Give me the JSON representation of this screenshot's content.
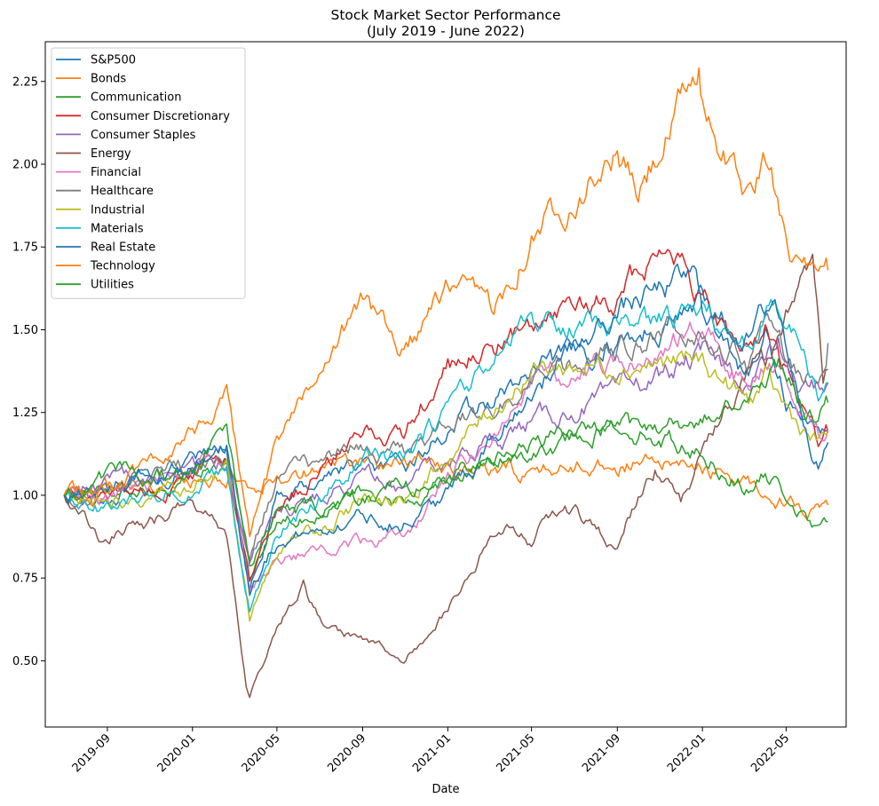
{
  "chart_data": {
    "type": "line",
    "title": [
      "Stock Market Sector Performance",
      "(July 2019 - June 2022)"
    ],
    "xlabel": "Date",
    "ylabel": "",
    "x_range": [
      "2019-07-01",
      "2022-06-30"
    ],
    "xlim": [
      "2019-06-04",
      "2022-07-26"
    ],
    "ylim": [
      0.3,
      2.37
    ],
    "grid": false,
    "legend_position": "top-left",
    "x_ticks": [
      {
        "date": "2019-09-01",
        "label": "2019-09"
      },
      {
        "date": "2020-01-01",
        "label": "2020-01"
      },
      {
        "date": "2020-05-01",
        "label": "2020-05"
      },
      {
        "date": "2020-09-01",
        "label": "2020-09"
      },
      {
        "date": "2021-01-01",
        "label": "2021-01"
      },
      {
        "date": "2021-05-01",
        "label": "2021-05"
      },
      {
        "date": "2021-09-01",
        "label": "2021-09"
      },
      {
        "date": "2022-01-01",
        "label": "2022-01"
      },
      {
        "date": "2022-05-01",
        "label": "2022-05"
      }
    ],
    "y_ticks": [
      {
        "value": 0.5,
        "label": "0.50"
      },
      {
        "value": 0.75,
        "label": "0.75"
      },
      {
        "value": 1.0,
        "label": "1.00"
      },
      {
        "value": 1.25,
        "label": "1.25"
      },
      {
        "value": 1.5,
        "label": "1.50"
      },
      {
        "value": 1.75,
        "label": "1.75"
      },
      {
        "value": 2.0,
        "label": "2.00"
      },
      {
        "value": 2.25,
        "label": "2.25"
      }
    ],
    "series": [
      {
        "name": "S&P500",
        "color": "#1f77b4",
        "points": [
          [
            "2019-07-01",
            1.0
          ],
          [
            "2019-09-01",
            1.0
          ],
          [
            "2019-12-01",
            1.06
          ],
          [
            "2020-02-19",
            1.14
          ],
          [
            "2020-03-23",
            0.7
          ],
          [
            "2020-05-01",
            0.98
          ],
          [
            "2020-08-01",
            1.09
          ],
          [
            "2020-10-30",
            1.07
          ],
          [
            "2021-01-01",
            1.2
          ],
          [
            "2021-05-01",
            1.36
          ],
          [
            "2021-09-01",
            1.46
          ],
          [
            "2022-01-01",
            1.58
          ],
          [
            "2022-03-08",
            1.36
          ],
          [
            "2022-04-01",
            1.48
          ],
          [
            "2022-05-01",
            1.3
          ],
          [
            "2022-06-16",
            1.17
          ],
          [
            "2022-06-30",
            1.2
          ]
        ]
      },
      {
        "name": "Bonds",
        "color": "#ff7f0e",
        "points": [
          [
            "2019-07-01",
            1.0
          ],
          [
            "2019-09-01",
            1.02
          ],
          [
            "2020-01-01",
            1.03
          ],
          [
            "2020-03-01",
            1.06
          ],
          [
            "2020-03-20",
            1.02
          ],
          [
            "2020-05-01",
            1.06
          ],
          [
            "2020-08-01",
            1.1
          ],
          [
            "2021-01-01",
            1.1
          ],
          [
            "2021-03-01",
            1.06
          ],
          [
            "2021-08-01",
            1.1
          ],
          [
            "2021-12-01",
            1.09
          ],
          [
            "2022-01-01",
            1.08
          ],
          [
            "2022-03-01",
            1.04
          ],
          [
            "2022-05-01",
            0.99
          ],
          [
            "2022-06-15",
            0.95
          ],
          [
            "2022-06-30",
            0.97
          ]
        ]
      },
      {
        "name": "Communication",
        "color": "#2ca02c",
        "points": [
          [
            "2019-07-01",
            1.0
          ],
          [
            "2019-09-01",
            0.99
          ],
          [
            "2020-01-01",
            1.06
          ],
          [
            "2020-02-19",
            1.1
          ],
          [
            "2020-03-23",
            0.75
          ],
          [
            "2020-05-01",
            0.93
          ],
          [
            "2020-09-01",
            1.0
          ],
          [
            "2020-10-30",
            0.97
          ],
          [
            "2021-01-01",
            1.06
          ],
          [
            "2021-05-01",
            1.15
          ],
          [
            "2021-09-01",
            1.22
          ],
          [
            "2022-01-01",
            1.13
          ],
          [
            "2022-03-08",
            1.02
          ],
          [
            "2022-04-01",
            1.06
          ],
          [
            "2022-05-01",
            1.0
          ],
          [
            "2022-06-16",
            0.88
          ],
          [
            "2022-06-30",
            0.92
          ]
        ]
      },
      {
        "name": "Consumer Discretionary",
        "color": "#d62728",
        "points": [
          [
            "2019-07-01",
            1.0
          ],
          [
            "2019-09-01",
            0.98
          ],
          [
            "2020-01-01",
            1.05
          ],
          [
            "2020-02-19",
            1.12
          ],
          [
            "2020-03-23",
            0.72
          ],
          [
            "2020-05-01",
            0.95
          ],
          [
            "2020-09-01",
            1.2
          ],
          [
            "2020-10-30",
            1.18
          ],
          [
            "2021-01-01",
            1.38
          ],
          [
            "2021-05-01",
            1.5
          ],
          [
            "2021-09-01",
            1.6
          ],
          [
            "2021-11-15",
            1.78
          ],
          [
            "2022-01-01",
            1.6
          ],
          [
            "2022-03-08",
            1.4
          ],
          [
            "2022-04-01",
            1.52
          ],
          [
            "2022-05-15",
            1.3
          ],
          [
            "2022-06-16",
            1.16
          ],
          [
            "2022-06-30",
            1.19
          ]
        ]
      },
      {
        "name": "Consumer Staples",
        "color": "#9467bd",
        "points": [
          [
            "2019-07-01",
            1.0
          ],
          [
            "2019-09-01",
            1.04
          ],
          [
            "2020-01-01",
            1.08
          ],
          [
            "2020-02-19",
            1.1
          ],
          [
            "2020-03-23",
            0.82
          ],
          [
            "2020-05-01",
            0.95
          ],
          [
            "2020-09-01",
            1.05
          ],
          [
            "2020-10-30",
            1.02
          ],
          [
            "2021-01-01",
            1.1
          ],
          [
            "2021-05-01",
            1.22
          ],
          [
            "2021-09-01",
            1.3
          ],
          [
            "2022-01-01",
            1.42
          ],
          [
            "2022-03-08",
            1.34
          ],
          [
            "2022-04-20",
            1.45
          ],
          [
            "2022-05-20",
            1.3
          ],
          [
            "2022-06-30",
            1.34
          ]
        ]
      },
      {
        "name": "Energy",
        "color": "#8c564b",
        "points": [
          [
            "2019-07-01",
            1.0
          ],
          [
            "2019-08-20",
            0.88
          ],
          [
            "2019-11-01",
            0.92
          ],
          [
            "2020-01-01",
            0.98
          ],
          [
            "2020-02-19",
            0.88
          ],
          [
            "2020-03-18",
            0.42
          ],
          [
            "2020-03-23",
            0.4
          ],
          [
            "2020-05-01",
            0.6
          ],
          [
            "2020-06-08",
            0.72
          ],
          [
            "2020-07-01",
            0.62
          ],
          [
            "2020-09-01",
            0.56
          ],
          [
            "2020-10-30",
            0.5
          ],
          [
            "2021-01-01",
            0.66
          ],
          [
            "2021-03-15",
            0.92
          ],
          [
            "2021-05-01",
            0.86
          ],
          [
            "2021-06-15",
            0.98
          ],
          [
            "2021-08-20",
            0.86
          ],
          [
            "2021-09-01",
            0.87
          ],
          [
            "2021-10-25",
            1.08
          ],
          [
            "2021-12-01",
            0.98
          ],
          [
            "2022-01-01",
            1.12
          ],
          [
            "2022-03-08",
            1.38
          ],
          [
            "2022-04-01",
            1.4
          ],
          [
            "2022-06-08",
            1.7
          ],
          [
            "2022-06-23",
            1.33
          ],
          [
            "2022-06-30",
            1.38
          ]
        ]
      },
      {
        "name": "Financial",
        "color": "#e377c2",
        "points": [
          [
            "2019-07-01",
            1.0
          ],
          [
            "2019-09-01",
            0.98
          ],
          [
            "2020-01-01",
            1.08
          ],
          [
            "2020-02-19",
            1.12
          ],
          [
            "2020-03-23",
            0.72
          ],
          [
            "2020-05-01",
            0.8
          ],
          [
            "2020-09-01",
            0.86
          ],
          [
            "2020-10-30",
            0.88
          ],
          [
            "2021-01-01",
            1.04
          ],
          [
            "2021-05-01",
            1.34
          ],
          [
            "2021-09-01",
            1.4
          ],
          [
            "2022-01-01",
            1.5
          ],
          [
            "2022-03-08",
            1.35
          ],
          [
            "2022-04-01",
            1.42
          ],
          [
            "2022-05-15",
            1.28
          ],
          [
            "2022-06-16",
            1.18
          ],
          [
            "2022-06-30",
            1.2
          ]
        ]
      },
      {
        "name": "Healthcare",
        "color": "#7f7f7f",
        "points": [
          [
            "2019-07-01",
            1.0
          ],
          [
            "2019-09-01",
            1.0
          ],
          [
            "2020-01-01",
            1.1
          ],
          [
            "2020-02-19",
            1.12
          ],
          [
            "2020-03-23",
            0.82
          ],
          [
            "2020-05-01",
            1.06
          ],
          [
            "2020-09-01",
            1.15
          ],
          [
            "2020-10-30",
            1.12
          ],
          [
            "2021-01-01",
            1.22
          ],
          [
            "2021-05-01",
            1.32
          ],
          [
            "2021-09-01",
            1.45
          ],
          [
            "2022-01-01",
            1.52
          ],
          [
            "2022-03-08",
            1.4
          ],
          [
            "2022-04-01",
            1.52
          ],
          [
            "2022-05-15",
            1.38
          ],
          [
            "2022-06-16",
            1.36
          ],
          [
            "2022-06-30",
            1.46
          ]
        ]
      },
      {
        "name": "Industrial",
        "color": "#bcbd22",
        "points": [
          [
            "2019-07-01",
            1.0
          ],
          [
            "2019-09-01",
            0.97
          ],
          [
            "2020-01-01",
            1.04
          ],
          [
            "2020-02-19",
            1.1
          ],
          [
            "2020-03-23",
            0.64
          ],
          [
            "2020-05-01",
            0.82
          ],
          [
            "2020-09-01",
            0.98
          ],
          [
            "2020-10-30",
            0.98
          ],
          [
            "2021-01-01",
            1.12
          ],
          [
            "2021-05-01",
            1.38
          ],
          [
            "2021-09-01",
            1.4
          ],
          [
            "2022-01-01",
            1.4
          ],
          [
            "2022-03-08",
            1.28
          ],
          [
            "2022-04-01",
            1.34
          ],
          [
            "2022-05-15",
            1.22
          ],
          [
            "2022-06-16",
            1.15
          ],
          [
            "2022-06-30",
            1.19
          ]
        ]
      },
      {
        "name": "Materials",
        "color": "#17becf",
        "points": [
          [
            "2019-07-01",
            1.0
          ],
          [
            "2019-09-01",
            0.96
          ],
          [
            "2020-01-01",
            1.04
          ],
          [
            "2020-02-19",
            1.06
          ],
          [
            "2020-03-23",
            0.66
          ],
          [
            "2020-05-01",
            0.88
          ],
          [
            "2020-09-01",
            1.1
          ],
          [
            "2020-10-30",
            1.12
          ],
          [
            "2021-01-01",
            1.25
          ],
          [
            "2021-05-01",
            1.52
          ],
          [
            "2021-09-01",
            1.5
          ],
          [
            "2022-01-01",
            1.56
          ],
          [
            "2022-03-08",
            1.44
          ],
          [
            "2022-04-15",
            1.6
          ],
          [
            "2022-05-20",
            1.44
          ],
          [
            "2022-06-16",
            1.3
          ],
          [
            "2022-06-30",
            1.34
          ]
        ]
      },
      {
        "name": "Real Estate",
        "color": "#1f77b4",
        "points": [
          [
            "2019-07-01",
            1.0
          ],
          [
            "2019-09-01",
            1.04
          ],
          [
            "2020-01-01",
            1.08
          ],
          [
            "2020-02-19",
            1.16
          ],
          [
            "2020-03-23",
            0.72
          ],
          [
            "2020-05-01",
            0.86
          ],
          [
            "2020-09-01",
            0.94
          ],
          [
            "2020-10-30",
            0.92
          ],
          [
            "2021-01-01",
            1.0
          ],
          [
            "2021-05-01",
            1.32
          ],
          [
            "2021-09-01",
            1.56
          ],
          [
            "2021-12-20",
            1.66
          ],
          [
            "2022-01-01",
            1.56
          ],
          [
            "2022-03-08",
            1.48
          ],
          [
            "2022-04-15",
            1.6
          ],
          [
            "2022-05-20",
            1.3
          ],
          [
            "2022-06-16",
            1.1
          ],
          [
            "2022-06-30",
            1.16
          ]
        ]
      },
      {
        "name": "Technology",
        "color": "#ff7f0e",
        "points": [
          [
            "2019-07-01",
            1.0
          ],
          [
            "2019-09-01",
            1.02
          ],
          [
            "2020-01-01",
            1.2
          ],
          [
            "2020-02-19",
            1.3
          ],
          [
            "2020-03-23",
            0.86
          ],
          [
            "2020-05-01",
            1.14
          ],
          [
            "2020-09-01",
            1.6
          ],
          [
            "2020-10-30",
            1.45
          ],
          [
            "2021-01-01",
            1.62
          ],
          [
            "2021-03-08",
            1.56
          ],
          [
            "2021-05-01",
            1.8
          ],
          [
            "2021-09-01",
            2.03
          ],
          [
            "2021-10-01",
            1.9
          ],
          [
            "2021-12-27",
            2.28
          ],
          [
            "2022-01-01",
            2.18
          ],
          [
            "2022-03-08",
            1.9
          ],
          [
            "2022-04-01",
            2.0
          ],
          [
            "2022-05-15",
            1.72
          ],
          [
            "2022-06-16",
            1.62
          ],
          [
            "2022-06-30",
            1.68
          ]
        ]
      },
      {
        "name": "Utilities",
        "color": "#2ca02c",
        "points": [
          [
            "2019-07-01",
            1.0
          ],
          [
            "2019-09-01",
            1.06
          ],
          [
            "2020-01-01",
            1.06
          ],
          [
            "2020-02-19",
            1.2
          ],
          [
            "2020-03-23",
            0.8
          ],
          [
            "2020-05-01",
            0.95
          ],
          [
            "2020-09-01",
            0.98
          ],
          [
            "2020-10-30",
            1.02
          ],
          [
            "2021-01-01",
            1.05
          ],
          [
            "2021-05-01",
            1.14
          ],
          [
            "2021-09-01",
            1.2
          ],
          [
            "2022-01-01",
            1.22
          ],
          [
            "2022-03-08",
            1.3
          ],
          [
            "2022-04-20",
            1.4
          ],
          [
            "2022-05-20",
            1.28
          ],
          [
            "2022-06-16",
            1.22
          ],
          [
            "2022-06-30",
            1.28
          ]
        ]
      }
    ]
  }
}
